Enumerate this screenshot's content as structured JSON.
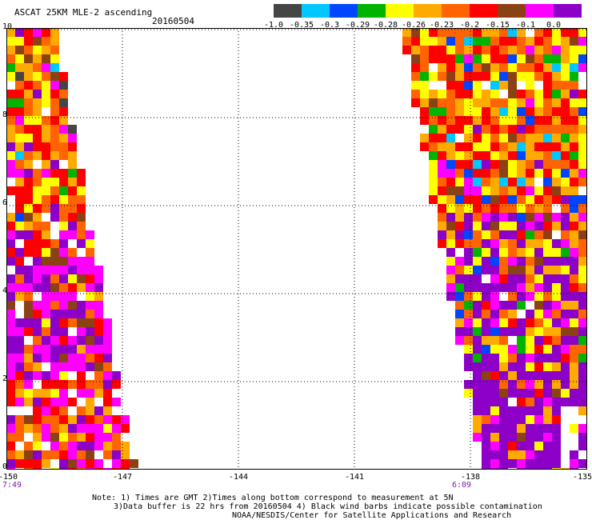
{
  "header": {
    "title": "ASCAT 25KM MLE-2 ascending",
    "date": "20160504"
  },
  "colorbar": {
    "colors": [
      "#454545",
      "#00c8ff",
      "#0046ff",
      "#00b400",
      "#ffff00",
      "#ffaa00",
      "#ff6400",
      "#ff0000",
      "#8c4114",
      "#ff00ff",
      "#8c00c8"
    ],
    "labels": [
      "-1.0",
      "-0.35",
      "-0.3",
      "-0.29",
      "-0.28",
      "-0.26",
      "-0.23",
      "-0.2",
      "-0.15",
      "-0.1",
      "0.0"
    ]
  },
  "map": {
    "lon_range": [
      -150,
      -135
    ],
    "lat_range": [
      0,
      10
    ],
    "x_ticks": [
      "-150",
      "-147",
      "-144",
      "-141",
      "-138",
      "-135"
    ],
    "y_ticks": [
      "10",
      "8",
      "6",
      "4",
      "2",
      "0"
    ],
    "left_time": "7:49",
    "right_time": "6:09"
  },
  "footer": {
    "note_line1": "Note: 1) Times are GMT 2)Times along bottom correspond to measurement at 5N",
    "note_line2": "3)Data buffer is 22 hrs from 20160504 4) Black wind barbs indicate possible contamination",
    "note_line3": "NOAA/NESDIS/Center for Satellite Applications and Research"
  }
}
